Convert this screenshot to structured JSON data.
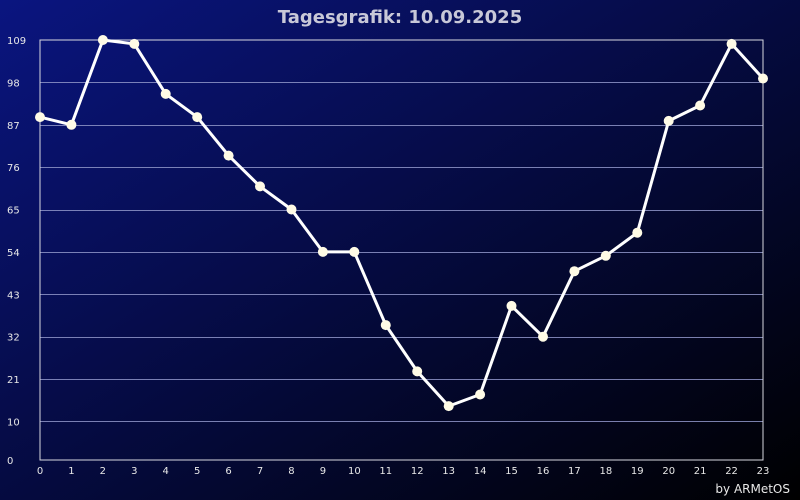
{
  "chart_data": {
    "type": "line",
    "title": "Tagesgrafik: 10.09.2025",
    "x": [
      0,
      1,
      2,
      3,
      4,
      5,
      6,
      7,
      8,
      9,
      10,
      11,
      12,
      13,
      14,
      15,
      16,
      17,
      18,
      19,
      20,
      21,
      22,
      23
    ],
    "series": [
      {
        "values": [
          89,
          87,
          110,
          108,
          95,
          89,
          79,
          71,
          65,
          54,
          54,
          35,
          23,
          14,
          17,
          40,
          32,
          49,
          53,
          59,
          88,
          92,
          108,
          99
        ]
      }
    ],
    "xlim": [
      0,
      23
    ],
    "ylim": [
      0,
      109
    ],
    "yticks": [
      0,
      10,
      21,
      32,
      43,
      54,
      65,
      76,
      87,
      98,
      109
    ],
    "xlabel": "",
    "ylabel": "",
    "grid": true,
    "colors": {
      "background_left": "#0a1580",
      "background_right": "#000000",
      "line": "#ffffff",
      "marker": "#fffbe6",
      "title": "#c8c8d8",
      "text": "#e8e8e8"
    }
  },
  "credit": "by ARMetOS"
}
